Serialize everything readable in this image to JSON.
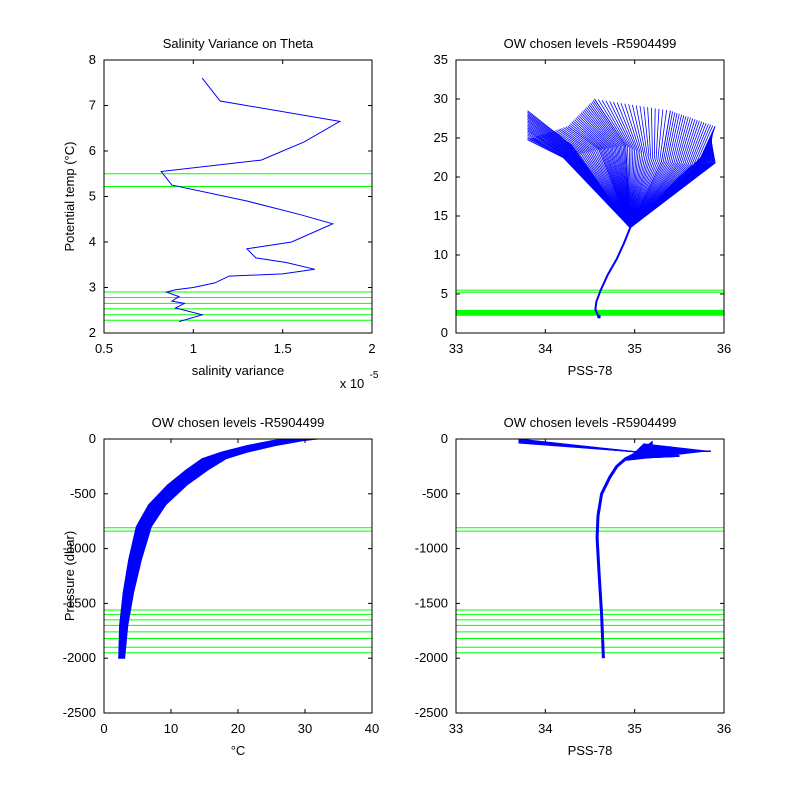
{
  "colors": {
    "series": "#0000ff",
    "levels": "#00ff00",
    "axis": "#000000"
  },
  "chart_data": [
    {
      "type": "line",
      "title": "Salinity Variance on Theta",
      "xlabel": "salinity variance",
      "ylabel": "Potential temp (°C)",
      "xlim": [
        0.5,
        2
      ],
      "ylim": [
        2,
        8
      ],
      "x_exponent_label": "x 10",
      "x_exponent": "-5",
      "xtick_labels": [
        "0.5",
        "1",
        "1.5",
        "2"
      ],
      "ytick_labels": [
        "2",
        "3",
        "4",
        "5",
        "6",
        "7",
        "8"
      ],
      "series": [
        {
          "x": [
            0.92,
            1.05,
            0.9,
            0.95,
            0.88,
            0.92,
            0.85,
            0.9,
            1.0,
            1.12,
            1.2,
            1.5,
            1.68,
            1.52,
            1.35,
            1.3,
            1.55,
            1.78,
            1.6,
            1.3,
            0.88,
            0.82,
            1.38,
            1.62,
            1.82,
            1.15,
            1.05
          ],
          "y": [
            2.25,
            2.4,
            2.55,
            2.65,
            2.7,
            2.8,
            2.9,
            2.95,
            3.0,
            3.1,
            3.25,
            3.3,
            3.4,
            3.55,
            3.65,
            3.85,
            4.0,
            4.4,
            4.6,
            4.9,
            5.25,
            5.55,
            5.8,
            6.2,
            6.65,
            7.1,
            7.6
          ]
        }
      ],
      "level_lines": [
        5.5,
        5.22,
        2.9,
        2.78,
        2.65,
        2.53,
        2.4,
        2.28
      ]
    },
    {
      "type": "line",
      "title": "OW chosen levels -R5904499",
      "xlabel": "PSS-78",
      "ylabel": "",
      "xlim": [
        33,
        36
      ],
      "ylim": [
        0,
        35
      ],
      "xtick_labels": [
        "33",
        "34",
        "35",
        "36"
      ],
      "ytick_labels": [
        "0",
        "5",
        "10",
        "15",
        "20",
        "25",
        "30",
        "35"
      ],
      "profile": {
        "x": [
          34.6,
          34.56,
          34.57,
          34.62,
          34.7,
          34.8,
          34.88,
          34.95
        ],
        "y": [
          2,
          3,
          4,
          5.5,
          7.5,
          9.5,
          11.5,
          13.5
        ]
      },
      "bundle_top": [
        [
          [
            34.95,
            13.5
          ],
          [
            34.3,
            24.0
          ],
          [
            33.8,
            28.5
          ]
        ],
        [
          [
            34.95,
            13.5
          ],
          [
            34.2,
            22.5
          ],
          [
            33.8,
            24.8
          ]
        ],
        [
          [
            34.95,
            13.5
          ],
          [
            34.6,
            23.5
          ],
          [
            34.25,
            26.5
          ]
        ],
        [
          [
            34.95,
            13.5
          ],
          [
            34.9,
            24.0
          ],
          [
            34.55,
            30.0
          ]
        ],
        [
          [
            34.95,
            13.5
          ],
          [
            35.3,
            22.0
          ],
          [
            35.4,
            28.5
          ]
        ],
        [
          [
            34.95,
            13.5
          ],
          [
            35.7,
            21.5
          ],
          [
            35.9,
            26.5
          ]
        ],
        [
          [
            34.95,
            13.5
          ],
          [
            35.9,
            21.8
          ],
          [
            35.85,
            25.0
          ]
        ],
        [
          [
            34.95,
            13.5
          ],
          [
            35.5,
            20.0
          ],
          [
            35.8,
            23.0
          ]
        ]
      ],
      "level_lines": [
        5.5,
        5.22,
        2.9,
        2.78,
        2.65,
        2.53,
        2.4,
        2.28
      ]
    },
    {
      "type": "line",
      "title": "OW chosen levels -R5904499",
      "xlabel": "°C",
      "ylabel": "Pressure (dbar)",
      "xlim": [
        0,
        40
      ],
      "ylim": [
        -2500,
        0
      ],
      "xtick_labels": [
        "0",
        "10",
        "20",
        "30",
        "40"
      ],
      "ytick_labels": [
        "0",
        "-500",
        "-1000",
        "-1500",
        "-2000",
        "-2500"
      ],
      "profile": {
        "x": [
          2.2,
          2.5,
          3.2,
          4.2,
          5.5,
          7.5,
          10.5,
          13.5,
          16,
          19,
          23,
          27,
          29
        ],
        "y": [
          -2000,
          -1700,
          -1400,
          -1100,
          -800,
          -600,
          -420,
          -280,
          -180,
          -120,
          -60,
          -15,
          0
        ]
      },
      "band_width": 2.2,
      "level_lines": [
        -810,
        -840,
        -1560,
        -1600,
        -1650,
        -1700,
        -1760,
        -1820,
        -1900,
        -1950
      ]
    },
    {
      "type": "line",
      "title": "OW chosen levels -R5904499",
      "xlabel": "PSS-78",
      "ylabel": "",
      "xlim": [
        33,
        36
      ],
      "ylim": [
        -2500,
        0
      ],
      "xtick_labels": [
        "33",
        "34",
        "35",
        "36"
      ],
      "ytick_labels": [
        "0",
        "-500",
        "-1000",
        "-1500",
        "-2000",
        "-2500"
      ],
      "profile": {
        "x": [
          34.65,
          34.63,
          34.6,
          34.58,
          34.59,
          34.63,
          34.72,
          34.8,
          34.9,
          35.05
        ],
        "y": [
          -2000,
          -1600,
          -1200,
          -900,
          -700,
          -500,
          -350,
          -250,
          -180,
          -120
        ]
      },
      "spikes": [
        [
          [
            35.05,
            -120
          ],
          [
            35.85,
            -110
          ]
        ],
        [
          [
            35.05,
            -120
          ],
          [
            35.4,
            -70
          ]
        ],
        [
          [
            34.9,
            -180
          ],
          [
            35.5,
            -150
          ]
        ],
        [
          [
            35.05,
            -120
          ],
          [
            33.7,
            0
          ]
        ],
        [
          [
            35.05,
            -120
          ],
          [
            35.2,
            -20
          ]
        ]
      ],
      "level_lines": [
        -810,
        -840,
        -1560,
        -1600,
        -1650,
        -1700,
        -1760,
        -1820,
        -1900,
        -1950
      ]
    }
  ]
}
